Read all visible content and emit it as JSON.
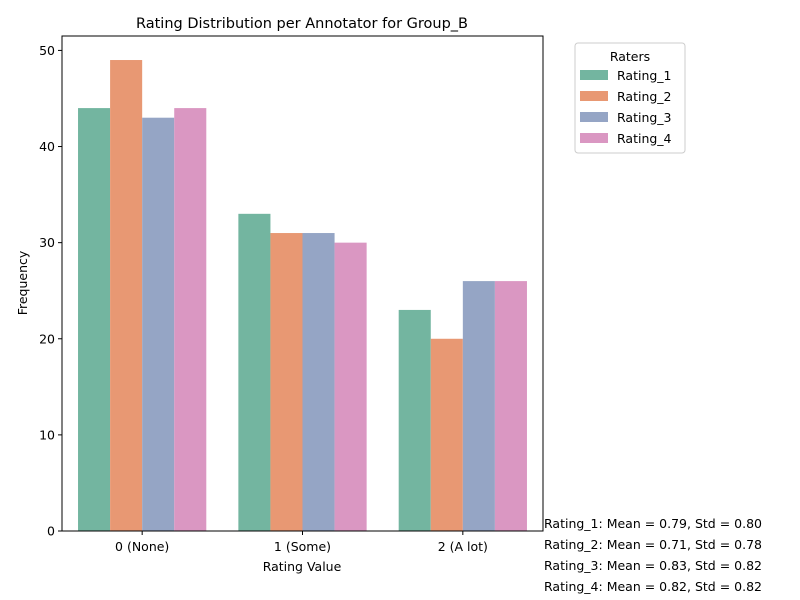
{
  "chart_data": {
    "type": "bar",
    "title": "Rating Distribution per Annotator for Group_B",
    "xlabel": "Rating Value",
    "ylabel": "Frequency",
    "categories": [
      "0 (None)",
      "1 (Some)",
      "2 (A lot)"
    ],
    "ylim": [
      0,
      51.5
    ],
    "yticks": [
      0,
      10,
      20,
      30,
      40,
      50
    ],
    "grid": false,
    "legend": {
      "title": "Raters",
      "placement": "upper right, outside plot"
    },
    "series": [
      {
        "name": "Rating_1",
        "color": "#73b5a0",
        "values": [
          44,
          33,
          23
        ]
      },
      {
        "name": "Rating_2",
        "color": "#e89873",
        "values": [
          49,
          31,
          20
        ]
      },
      {
        "name": "Rating_3",
        "color": "#95a5c5",
        "values": [
          43,
          31,
          26
        ]
      },
      {
        "name": "Rating_4",
        "color": "#da97c2",
        "values": [
          44,
          30,
          26
        ]
      }
    ]
  },
  "stats": [
    "Rating_1: Mean = 0.79, Std = 0.80",
    "Rating_2: Mean = 0.71, Std = 0.78",
    "Rating_3: Mean = 0.83, Std = 0.82",
    "Rating_4: Mean = 0.82, Std = 0.82"
  ]
}
